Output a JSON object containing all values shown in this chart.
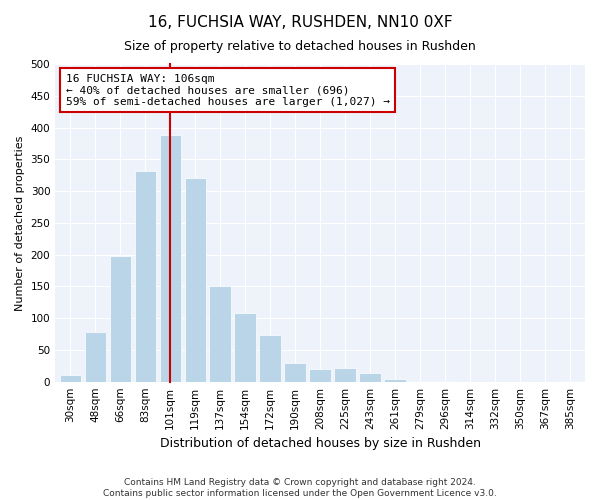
{
  "title": "16, FUCHSIA WAY, RUSHDEN, NN10 0XF",
  "subtitle": "Size of property relative to detached houses in Rushden",
  "xlabel": "Distribution of detached houses by size in Rushden",
  "ylabel": "Number of detached properties",
  "bar_labels": [
    "30sqm",
    "48sqm",
    "66sqm",
    "83sqm",
    "101sqm",
    "119sqm",
    "137sqm",
    "154sqm",
    "172sqm",
    "190sqm",
    "208sqm",
    "225sqm",
    "243sqm",
    "261sqm",
    "279sqm",
    "296sqm",
    "314sqm",
    "332sqm",
    "350sqm",
    "367sqm",
    "385sqm"
  ],
  "bar_values": [
    10,
    78,
    198,
    332,
    388,
    320,
    151,
    108,
    73,
    30,
    20,
    22,
    14,
    5,
    1,
    1,
    0,
    0,
    0,
    0,
    1
  ],
  "bar_color": "#bad4e8",
  "vline_color": "#cc0000",
  "vline_index": 4,
  "annotation_line1": "16 FUCHSIA WAY: 106sqm",
  "annotation_line2": "← 40% of detached houses are smaller (696)",
  "annotation_line3": "59% of semi-detached houses are larger (1,027) →",
  "annotation_box_facecolor": "#ffffff",
  "annotation_box_edgecolor": "#cc0000",
  "ylim": [
    0,
    500
  ],
  "yticks": [
    0,
    50,
    100,
    150,
    200,
    250,
    300,
    350,
    400,
    450,
    500
  ],
  "footer_line1": "Contains HM Land Registry data © Crown copyright and database right 2024.",
  "footer_line2": "Contains public sector information licensed under the Open Government Licence v3.0.",
  "bg_color": "#ffffff",
  "plot_bg_color": "#eef2fa",
  "title_fontsize": 11,
  "subtitle_fontsize": 9,
  "xlabel_fontsize": 9,
  "ylabel_fontsize": 8,
  "tick_fontsize": 7.5,
  "annotation_fontsize": 8,
  "footer_fontsize": 6.5
}
